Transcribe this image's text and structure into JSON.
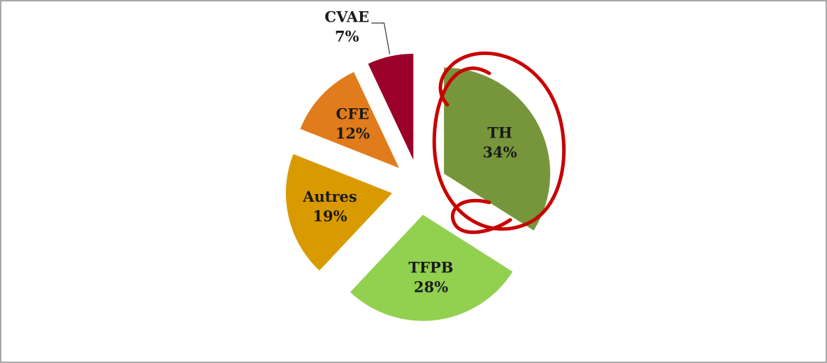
{
  "chart_data": {
    "type": "pie",
    "categories": [
      "TH",
      "TFPB",
      "Autres",
      "CFE",
      "CVAE"
    ],
    "values": [
      34,
      28,
      19,
      12,
      7
    ],
    "value_labels": [
      "34%",
      "28%",
      "19%",
      "12%",
      "7%"
    ],
    "colors": [
      "#77963c",
      "#92d050",
      "#d99a00",
      "#e07c1c",
      "#9b0028"
    ]
  }
}
